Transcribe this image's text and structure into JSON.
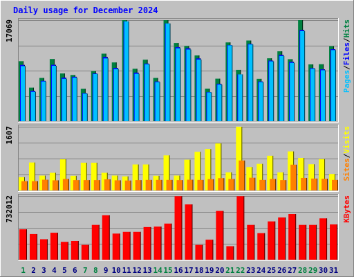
{
  "chart_data": {
    "type": "bar",
    "title": "Daily usage for December 2024",
    "categories": [
      "1",
      "2",
      "3",
      "4",
      "5",
      "6",
      "7",
      "8",
      "9",
      "10",
      "11",
      "12",
      "13",
      "14",
      "15",
      "16",
      "17",
      "18",
      "19",
      "20",
      "21",
      "22",
      "23",
      "24",
      "25",
      "26",
      "27",
      "28",
      "29",
      "30",
      "31"
    ],
    "weekend_categories": [
      "1",
      "7",
      "8",
      "14",
      "15",
      "21",
      "22",
      "28",
      "29"
    ],
    "panels": [
      {
        "id": "hits_files_pages",
        "ymax_label": "17069",
        "ymax": 17069,
        "legend": [
          {
            "text": "Pages",
            "color": "#00c0ff"
          },
          {
            "text": "/",
            "color": "#000000"
          },
          {
            "text": "Files",
            "color": "#0000ff"
          },
          {
            "text": "/",
            "color": "#000000"
          },
          {
            "text": "Hits",
            "color": "#008040"
          }
        ],
        "series": [
          {
            "name": "Hits",
            "color": "#008040",
            "values": [
              10130,
              5660,
              7300,
              10500,
              8060,
              7800,
              5480,
              8450,
              11400,
              9920,
              17100,
              8850,
              10380,
              7300,
              17400,
              13200,
              12700,
              11100,
              5500,
              7180,
              13300,
              8660,
              13620,
              7150,
              10620,
              11800,
              10470,
              17300,
              9590,
              9620,
              12660
            ]
          },
          {
            "name": "Files",
            "color": "#0000ff",
            "values": [
              9500,
              5140,
              6810,
              9520,
              7350,
              7500,
              4740,
              8050,
              10850,
              9000,
              16850,
              8200,
              9720,
              6700,
              16500,
              12500,
              12300,
              10600,
              4900,
              6320,
              12850,
              7900,
              13050,
              6700,
              10230,
              11200,
              10020,
              15400,
              8950,
              8750,
              12150
            ]
          },
          {
            "name": "Pages",
            "color": "#00c0ff",
            "values": [
              9300,
              4950,
              6700,
              9350,
              7150,
              7350,
              4650,
              7950,
              10600,
              8800,
              16850,
              8000,
              9600,
              6600,
              16500,
              12300,
              12100,
              10400,
              4850,
              6180,
              12800,
              7900,
              12950,
              6600,
              10100,
              11000,
              9850,
              15200,
              8850,
              8600,
              12000
            ]
          }
        ]
      },
      {
        "id": "visits_sites",
        "ymax_label": "1607",
        "ymax": 1607,
        "legend": [
          {
            "text": "Sites",
            "color": "#ff8000"
          },
          {
            "text": "/",
            "color": "#000000"
          },
          {
            "text": "Visits",
            "color": "#ffff00"
          }
        ],
        "series": [
          {
            "name": "Visits",
            "color": "#ffff00",
            "values": [
              335,
              705,
              375,
              445,
              785,
              370,
              700,
              700,
              445,
              375,
              355,
              655,
              655,
              370,
              885,
              375,
              775,
              975,
              1045,
              1185,
              455,
              1640,
              590,
              670,
              875,
              455,
              985,
              820,
              660,
              790,
              415
            ]
          },
          {
            "name": "Sites",
            "color": "#ff8000",
            "values": [
              235,
              235,
              270,
              255,
              290,
              260,
              260,
              260,
              280,
              255,
              250,
              260,
              265,
              265,
              265,
              260,
              270,
              265,
              285,
              310,
              290,
              755,
              320,
              265,
              290,
              260,
              650,
              315,
              300,
              295,
              265
            ]
          }
        ]
      },
      {
        "id": "kbytes",
        "ymax_label": "732012",
        "ymax": 732012,
        "legend": [
          {
            "text": "KBytes",
            "color": "#ff0000"
          }
        ],
        "series": [
          {
            "name": "KBytes",
            "color": "#ff0000",
            "values": [
              349000,
              295000,
              235000,
              310000,
              205000,
              215000,
              170000,
              400000,
              510000,
              300000,
              320000,
              320000,
              375000,
              380000,
              415000,
              730000,
              635000,
              170000,
              230000,
              560000,
              155000,
              730000,
              400000,
              305000,
              440000,
              485000,
              525000,
              400000,
              400000,
              475000,
              405000
            ]
          }
        ]
      }
    ]
  }
}
